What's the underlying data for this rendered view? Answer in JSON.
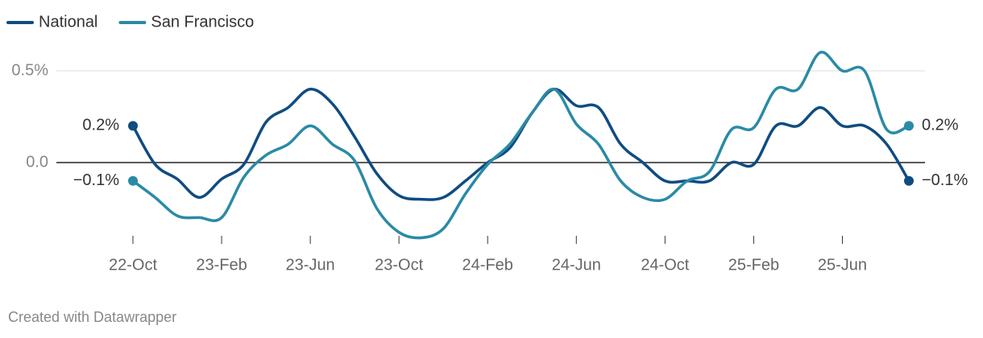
{
  "chart_data": {
    "type": "line",
    "x": [
      "2022-10",
      "2022-11",
      "2022-12",
      "2023-01",
      "2023-02",
      "2023-03",
      "2023-04",
      "2023-05",
      "2023-06",
      "2023-07",
      "2023-08",
      "2023-09",
      "2023-10",
      "2023-11",
      "2023-12",
      "2024-01",
      "2024-02",
      "2024-03",
      "2024-04",
      "2024-05",
      "2024-06",
      "2024-07",
      "2024-08",
      "2024-09",
      "2024-10",
      "2024-11",
      "2024-12",
      "2025-01",
      "2025-02",
      "2025-03",
      "2025-04",
      "2025-05",
      "2025-06",
      "2025-07",
      "2025-08",
      "2025-09"
    ],
    "series": [
      {
        "name": "National",
        "color": "#0f4c81",
        "values": [
          0.2,
          -0.01,
          -0.09,
          -0.19,
          -0.09,
          -0.01,
          0.22,
          0.3,
          0.4,
          0.32,
          0.14,
          -0.06,
          -0.18,
          -0.2,
          -0.19,
          -0.1,
          0,
          0.08,
          0.27,
          0.4,
          0.31,
          0.3,
          0.1,
          0,
          -0.1,
          -0.1,
          -0.1,
          0,
          -0.01,
          0.2,
          0.2,
          0.3,
          0.2,
          0.2,
          0.1,
          -0.1
        ],
        "value_labels": [
          "0.2%",
          null,
          null,
          null,
          null,
          null,
          null,
          null,
          null,
          null,
          null,
          null,
          null,
          null,
          null,
          null,
          null,
          null,
          null,
          null,
          null,
          null,
          null,
          null,
          null,
          null,
          null,
          null,
          null,
          null,
          null,
          null,
          null,
          null,
          null,
          "−0.1%"
        ]
      },
      {
        "name": "San Francisco",
        "color": "#2a8aa6",
        "values": [
          -0.1,
          -0.19,
          -0.29,
          -0.3,
          -0.3,
          -0.08,
          0.04,
          0.1,
          0.2,
          0.1,
          0.01,
          -0.25,
          -0.38,
          -0.41,
          -0.36,
          -0.17,
          -0.01,
          0.1,
          0.27,
          0.4,
          0.21,
          0.1,
          -0.1,
          -0.19,
          -0.2,
          -0.1,
          -0.05,
          0.18,
          0.19,
          0.4,
          0.4,
          0.6,
          0.5,
          0.5,
          0.18,
          0.2
        ],
        "value_labels": [
          "−0.1%",
          null,
          null,
          null,
          null,
          null,
          null,
          null,
          null,
          null,
          null,
          null,
          null,
          null,
          null,
          null,
          null,
          null,
          null,
          null,
          null,
          null,
          null,
          null,
          null,
          null,
          null,
          null,
          null,
          null,
          null,
          null,
          null,
          null,
          null,
          "0.2%"
        ]
      }
    ],
    "xticks": [
      {
        "value": "2022-10",
        "label": "22-Oct"
      },
      {
        "value": "2023-02",
        "label": "23-Feb"
      },
      {
        "value": "2023-06",
        "label": "23-Jun"
      },
      {
        "value": "2023-10",
        "label": "23-Oct"
      },
      {
        "value": "2024-02",
        "label": "24-Feb"
      },
      {
        "value": "2024-06",
        "label": "24-Jun"
      },
      {
        "value": "2024-10",
        "label": "24-Oct"
      },
      {
        "value": "2025-02",
        "label": "25-Feb"
      },
      {
        "value": "2025-06",
        "label": "25-Jun"
      }
    ],
    "ylim": [
      -0.45,
      0.6
    ],
    "yticks": [
      {
        "value": 0,
        "label": "0.0"
      },
      {
        "value": 0.5,
        "label": "0.5%"
      }
    ],
    "grid": true,
    "credit": "Created with Datawrapper"
  }
}
